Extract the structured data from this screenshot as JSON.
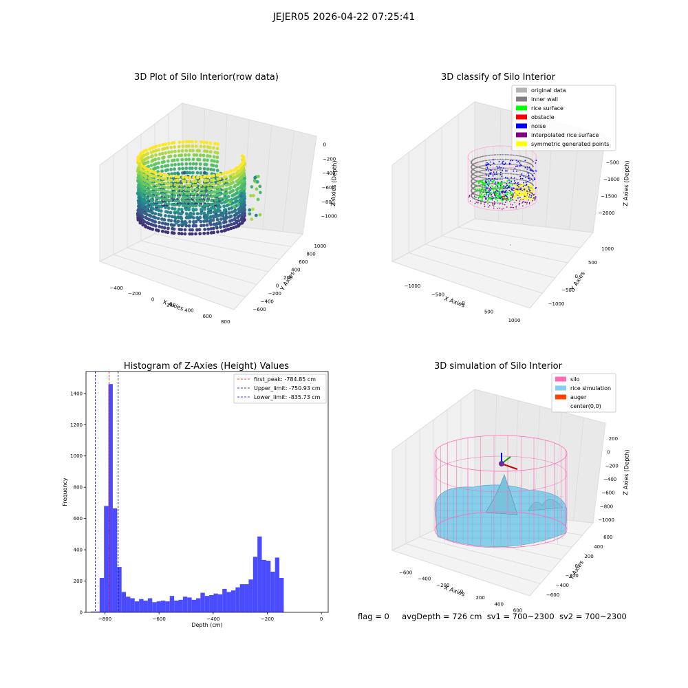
{
  "figure_title": "JEJER05 2026-04-22 07:25:41",
  "status": {
    "flag": "flag = 0",
    "avg_depth": "avgDepth = 726 cm",
    "sv1": "sv1 = 700~2300",
    "sv2": "sv2 = 700~2300"
  },
  "colors": {
    "original_data": "#b3b3b3",
    "inner_wall": "#808080",
    "rice_surface": "#00ff00",
    "obstacle": "#ff0000",
    "noise": "#0000ff",
    "interpolated": "#800080",
    "symmetric": "#ffff00",
    "silo": "#ff69b4",
    "rice_sim": "#87ceeb",
    "auger": "#ff4500",
    "hist_bar": "#4b4bff"
  },
  "chart_data": [
    {
      "type": "scatter",
      "title": "3D Plot of Silo Interior(row data)",
      "xlabel": "X Axies",
      "ylabel": "Y Axies",
      "zlabel": "Z Axies (Depth)",
      "x_ticks": [
        "−400",
        "−200",
        "0",
        "200",
        "400",
        "600",
        "800"
      ],
      "y_ticks": [
        "−600",
        "−400",
        "−200",
        "0",
        "200",
        "400",
        "600",
        "800",
        "1000"
      ],
      "z_ticks": [
        "0",
        "−200",
        "−400",
        "−600",
        "−800",
        "−1000"
      ],
      "xlim": [
        -500,
        800
      ],
      "ylim": [
        -700,
        1000
      ],
      "zlim": [
        -1100,
        50
      ],
      "colormap": "viridis by depth"
    },
    {
      "type": "scatter",
      "title": "3D classify of Silo Interior",
      "xlabel": "X Axies",
      "ylabel": "Y Axies",
      "zlabel": "Z Axies (Depth)",
      "x_ticks": [
        "−1000",
        "−500",
        "0",
        "500",
        "1000"
      ],
      "y_ticks": [
        "−1000",
        "−500",
        "0",
        "500",
        "1000"
      ],
      "z_ticks": [
        "0",
        "−500",
        "−1000",
        "−1500",
        "−2000"
      ],
      "legend_position": "top-right",
      "legend": [
        {
          "label": "original data",
          "color": "#b3b3b3"
        },
        {
          "label": "inner wall",
          "color": "#808080"
        },
        {
          "label": "rice surface",
          "color": "#00ff00"
        },
        {
          "label": "obstacle",
          "color": "#ff0000"
        },
        {
          "label": "noise",
          "color": "#0000ff"
        },
        {
          "label": "interpolated rice surface",
          "color": "#800080"
        },
        {
          "label": "symmetric generated points",
          "color": "#ffff00"
        }
      ]
    },
    {
      "type": "bar",
      "title": "Histogram of Z-Axies (Height) Values",
      "xlabel": "Depth (cm)",
      "ylabel": "Frequency",
      "xlim": [
        -870,
        25
      ],
      "ylim": [
        0,
        1540
      ],
      "x_ticks": [
        -800,
        -600,
        -400,
        -200,
        0
      ],
      "y_ticks": [
        0,
        200,
        400,
        600,
        800,
        1000,
        1200,
        1400
      ],
      "x_tick_labels": [
        "−800",
        "−600",
        "−400",
        "−200",
        "0"
      ],
      "y_tick_labels": [
        "0",
        "200",
        "400",
        "600",
        "800",
        "1000",
        "1200",
        "1400"
      ],
      "bin_start": -852,
      "bin_width": 16.2,
      "values": [
        5,
        5,
        220,
        680,
        1460,
        665,
        290,
        130,
        100,
        90,
        70,
        85,
        75,
        90,
        65,
        70,
        75,
        70,
        105,
        75,
        80,
        100,
        95,
        80,
        90,
        125,
        105,
        110,
        120,
        115,
        150,
        130,
        140,
        160,
        180,
        180,
        210,
        355,
        485,
        335,
        330,
        260,
        350,
        220
      ],
      "lines": [
        {
          "label": "first_peak: -784.85 cm",
          "x": -784.85,
          "color": "#ff0000"
        },
        {
          "label": "Upper_limit: -750.93 cm",
          "x": -750.93,
          "color": "#00008b"
        },
        {
          "label": "Lower_limit: -835.73 cm",
          "x": -835.73,
          "color": "#0000ff"
        }
      ],
      "legend_position": "top-right"
    },
    {
      "type": "surface",
      "title": "3D simulation of Silo Interior",
      "xlabel": "X Axies",
      "ylabel": "Y Axies",
      "zlabel": "Z Axies (Depth)",
      "x_ticks": [
        "−600",
        "−400",
        "−200",
        "0",
        "200",
        "400",
        "600"
      ],
      "y_ticks": [
        "−600",
        "−400",
        "−200",
        "0",
        "200",
        "400",
        "600"
      ],
      "z_ticks": [
        "200",
        "0",
        "−200",
        "−400",
        "−600",
        "−800",
        "−1000"
      ],
      "legend_position": "top-right",
      "legend": [
        {
          "label": "silo",
          "color": "#ff69b4"
        },
        {
          "label": "rice simulation",
          "color": "#87ceeb"
        },
        {
          "label": "auger",
          "color": "#ff4500"
        },
        {
          "label": "center(0,0)",
          "color": ""
        }
      ]
    }
  ]
}
